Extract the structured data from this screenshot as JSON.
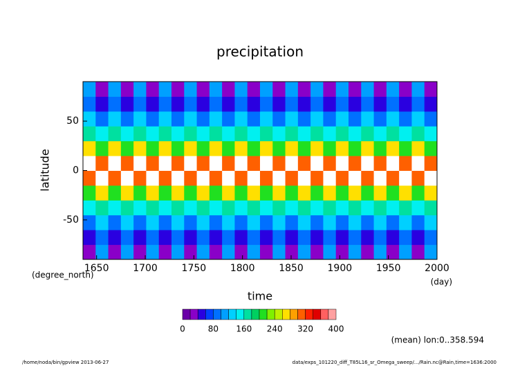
{
  "chart_data": {
    "type": "heatmap",
    "title": "precipitation",
    "ylabel": "latitude",
    "yunit": "(degree_north)",
    "xlabel": "time",
    "xunit": "(day)",
    "note": "(mean) lon:0..358.594",
    "footer_left": "/home/noda/bin/gpview  2013-06-27",
    "footer_right": "data/exps_101220_diff_T85L16_sr_Omega_sweep/.../Rain.nc@Rain,time=1636:2000",
    "xlim": [
      1636,
      2000
    ],
    "ylim": [
      -90,
      90
    ],
    "xticks": [
      1650,
      1700,
      1750,
      1800,
      1850,
      1900,
      1950,
      2000
    ],
    "yticks": [
      -50,
      0,
      50
    ],
    "x": [
      1642.5,
      1655.5,
      1668.5,
      1681.5,
      1694.5,
      1707.5,
      1720.5,
      1733.5,
      1746.5,
      1759.5,
      1772.5,
      1785.5,
      1798.5,
      1811.5,
      1824.5,
      1837.5,
      1850.5,
      1863.5,
      1876.5,
      1889.5,
      1902.5,
      1915.5,
      1928.5,
      1941.5,
      1954.5,
      1967.5,
      1980.5,
      1993.5
    ],
    "y": [
      -82.5,
      -67.5,
      -52.5,
      -37.5,
      -22.5,
      -7.5,
      7.5,
      22.5,
      37.5,
      52.5,
      67.5,
      82.5
    ],
    "z": [
      [
        20,
        110,
        20,
        110,
        20,
        110,
        20,
        110,
        20,
        110,
        20,
        110,
        20,
        110,
        20,
        110,
        20,
        110,
        20,
        110,
        20,
        110,
        20,
        110,
        20,
        110,
        20,
        110
      ],
      [
        40,
        90,
        40,
        90,
        40,
        90,
        40,
        90,
        40,
        90,
        40,
        90,
        40,
        90,
        40,
        90,
        40,
        90,
        40,
        90,
        40,
        90,
        40,
        90,
        40,
        90,
        40,
        90
      ],
      [
        80,
        120,
        80,
        120,
        80,
        120,
        80,
        120,
        80,
        120,
        80,
        120,
        80,
        120,
        80,
        120,
        80,
        120,
        80,
        120,
        80,
        120,
        80,
        120,
        80,
        120,
        80,
        120
      ],
      [
        140,
        160,
        140,
        160,
        140,
        160,
        140,
        160,
        140,
        160,
        140,
        160,
        140,
        160,
        140,
        160,
        140,
        160,
        140,
        160,
        140,
        160,
        140,
        160,
        140,
        160,
        140,
        160
      ],
      [
        200,
        260,
        200,
        260,
        200,
        260,
        200,
        260,
        200,
        260,
        200,
        260,
        200,
        260,
        200,
        260,
        200,
        260,
        200,
        260,
        200,
        260,
        200,
        260,
        200,
        260,
        200,
        260
      ],
      [
        300,
        420,
        300,
        420,
        300,
        420,
        300,
        420,
        300,
        420,
        300,
        420,
        300,
        420,
        300,
        420,
        300,
        420,
        300,
        420,
        300,
        420,
        300,
        420,
        300,
        420,
        300,
        420
      ],
      [
        420,
        300,
        420,
        300,
        420,
        300,
        420,
        300,
        420,
        300,
        420,
        300,
        420,
        300,
        420,
        300,
        420,
        300,
        420,
        300,
        420,
        300,
        420,
        300,
        420,
        300,
        420,
        300
      ],
      [
        260,
        200,
        260,
        200,
        260,
        200,
        260,
        200,
        260,
        200,
        260,
        200,
        260,
        200,
        260,
        200,
        260,
        200,
        260,
        200,
        260,
        200,
        260,
        200,
        260,
        200,
        260,
        200
      ],
      [
        160,
        140,
        160,
        140,
        160,
        140,
        160,
        140,
        160,
        140,
        160,
        140,
        160,
        140,
        160,
        140,
        160,
        140,
        160,
        140,
        160,
        140,
        160,
        140,
        160,
        140,
        160,
        140
      ],
      [
        120,
        80,
        120,
        80,
        120,
        80,
        120,
        80,
        120,
        80,
        120,
        80,
        120,
        80,
        120,
        80,
        120,
        80,
        120,
        80,
        120,
        80,
        120,
        80,
        120,
        80,
        120,
        80
      ],
      [
        90,
        40,
        90,
        40,
        90,
        40,
        90,
        40,
        90,
        40,
        90,
        40,
        90,
        40,
        90,
        40,
        90,
        40,
        90,
        40,
        90,
        40,
        90,
        40,
        90,
        40,
        90,
        40
      ],
      [
        110,
        20,
        110,
        20,
        110,
        20,
        110,
        20,
        110,
        20,
        110,
        20,
        110,
        20,
        110,
        20,
        110,
        20,
        110,
        20,
        110,
        20,
        110,
        20,
        110,
        20,
        110,
        20
      ]
    ],
    "levels": [
      0,
      20,
      40,
      60,
      80,
      100,
      120,
      140,
      160,
      180,
      200,
      220,
      240,
      260,
      280,
      300,
      320,
      340,
      360,
      380,
      400
    ],
    "colors": [
      "#6a00a8",
      "#8a00c8",
      "#2a00e0",
      "#0040ff",
      "#0070ff",
      "#00a0ff",
      "#00d0ff",
      "#00f0f0",
      "#00e0a0",
      "#00d060",
      "#20e020",
      "#80f000",
      "#c0f000",
      "#ffe000",
      "#ffa000",
      "#ff6000",
      "#ff2000",
      "#e00000",
      "#ff6060",
      "#ffa0a0"
    ],
    "over_color": "#ffffff",
    "colorbar_ticks": [
      0,
      80,
      160,
      240,
      320,
      400
    ]
  }
}
